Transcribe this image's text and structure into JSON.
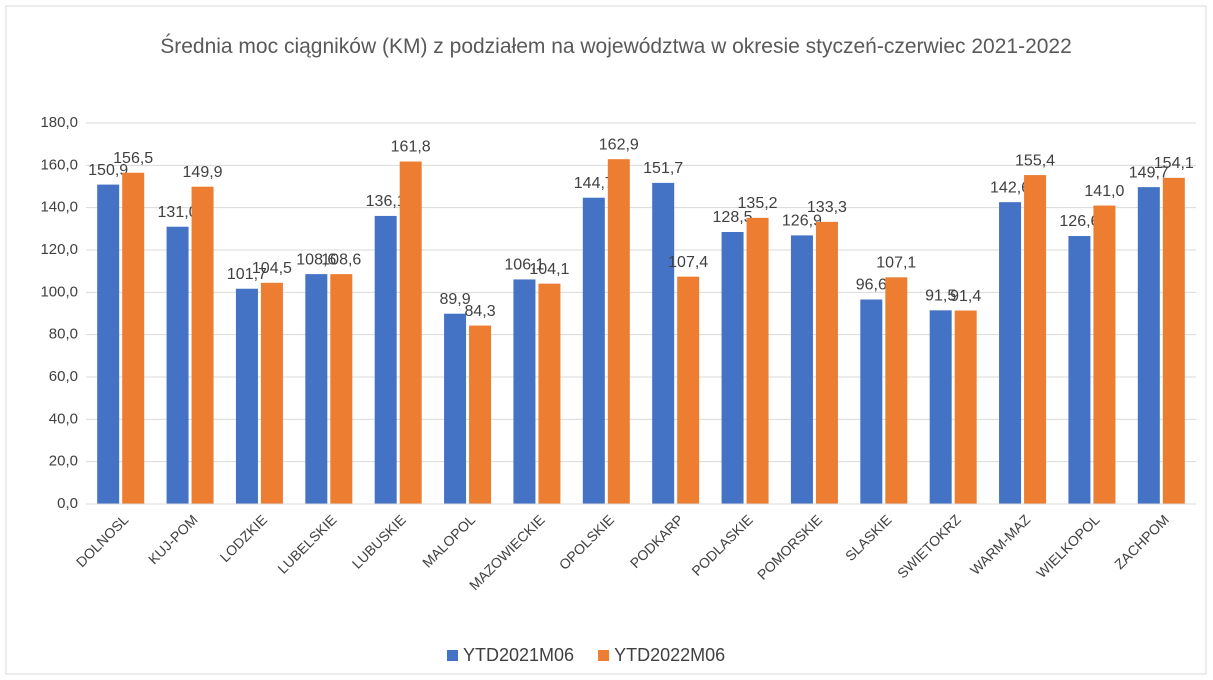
{
  "chart_data": {
    "type": "bar",
    "title": "Średnia moc ciągników (KM) z podziałem na województwa w okresie styczeń-czerwiec 2021-2022",
    "categories": [
      "DOLNOSL",
      "KUJ-POM",
      "LODZKIE",
      "LUBELSKIE",
      "LUBUSKIE",
      "MALOPOL",
      "MAZOWIECKIE",
      "OPOLSKIE",
      "PODKARP",
      "PODLASKIE",
      "POMORSKIE",
      "SLASKIE",
      "SWIETOKRZ",
      "WARM-MAZ",
      "WIELKOPOL",
      "ZACHPOM"
    ],
    "series": [
      {
        "name": "YTD2021M06",
        "color": "#4472c4",
        "values": [
          150.9,
          131.0,
          101.7,
          108.6,
          136.1,
          89.9,
          106.1,
          144.7,
          151.7,
          128.5,
          126.9,
          96.6,
          91.5,
          142.6,
          126.6,
          149.7
        ],
        "value_labels": [
          "150,9",
          "131,0",
          "101,7",
          "108,6",
          "136,1",
          "89,9",
          "106,1",
          "144,7",
          "151,7",
          "128,5",
          "126,9",
          "96,6",
          "91,5",
          "142,6",
          "126,6",
          "149,7"
        ]
      },
      {
        "name": "YTD2022M06",
        "color": "#ed7d31",
        "values": [
          156.5,
          149.9,
          104.5,
          108.6,
          161.8,
          84.3,
          104.1,
          162.9,
          107.4,
          135.2,
          133.3,
          107.1,
          91.4,
          155.4,
          141.0,
          154.1
        ],
        "value_labels": [
          "156,5",
          "149,9",
          "104,5",
          "108,6",
          "161,8",
          "84,3",
          "104,1",
          "162,9",
          "107,4",
          "135,2",
          "133,3",
          "107,1",
          "91,4",
          "155,4",
          "141,0",
          "154,1"
        ]
      }
    ],
    "ylim": [
      0,
      180
    ],
    "yticks": [
      {
        "value": 0,
        "label": "0,0"
      },
      {
        "value": 20,
        "label": "20,0"
      },
      {
        "value": 40,
        "label": "40,0"
      },
      {
        "value": 60,
        "label": "60,0"
      },
      {
        "value": 80,
        "label": "80,0"
      },
      {
        "value": 100,
        "label": "100,0"
      },
      {
        "value": 120,
        "label": "120,0"
      },
      {
        "value": 140,
        "label": "140,0"
      },
      {
        "value": 160,
        "label": "160,0"
      },
      {
        "value": 180,
        "label": "180,0"
      }
    ],
    "grid": true,
    "legend": "bottom"
  }
}
